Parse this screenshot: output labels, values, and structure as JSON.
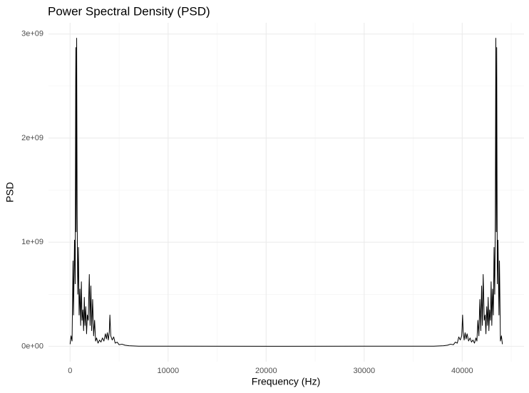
{
  "chart_data": {
    "type": "line",
    "title": "Power Spectral Density (PSD)",
    "x_label": "Frequency (Hz)",
    "y_label": "PSD",
    "color": "#000000",
    "grid": true,
    "xlim": [
      -2205,
      46305
    ],
    "ylim": [
      -148000000,
      3108000000
    ],
    "xticks": [
      0,
      10000,
      20000,
      30000,
      40000
    ],
    "xminor": [
      5000,
      15000,
      25000,
      35000,
      45000
    ],
    "yticks": [
      {
        "value": 0,
        "label": "0e+00"
      },
      {
        "value": 1000000000,
        "label": "1e+09"
      },
      {
        "value": 2000000000,
        "label": "2e+09"
      },
      {
        "value": 3000000000,
        "label": "3e+09"
      }
    ],
    "yminor": [
      500000000,
      1500000000,
      2500000000
    ],
    "x": [
      0,
      100,
      200,
      300,
      350,
      450,
      520,
      580,
      620,
      670,
      720,
      780,
      850,
      920,
      1000,
      1080,
      1150,
      1220,
      1300,
      1380,
      1450,
      1520,
      1600,
      1680,
      1760,
      1850,
      1960,
      2040,
      2120,
      2200,
      2300,
      2400,
      2500,
      2600,
      2700,
      2850,
      3000,
      3150,
      3300,
      3450,
      3600,
      3700,
      3800,
      3900,
      4000,
      4060,
      4150,
      4300,
      4450,
      4600,
      4800,
      5000,
      5300,
      5600,
      6000,
      7000,
      22050,
      37100,
      38100,
      38500,
      38800,
      39100,
      39300,
      39500,
      39650,
      39800,
      39950,
      40040,
      40100,
      40200,
      40300,
      40400,
      40500,
      40650,
      40800,
      40950,
      41100,
      41250,
      41400,
      41500,
      41600,
      41700,
      41800,
      41900,
      41980,
      42060,
      42140,
      42250,
      42340,
      42420,
      42500,
      42580,
      42650,
      42720,
      42800,
      42880,
      42950,
      43020,
      43100,
      43180,
      43250,
      43320,
      43380,
      43430,
      43480,
      43520,
      43580,
      43650,
      43750,
      43800,
      43900,
      44000,
      44100
    ],
    "values": [
      20000000.0,
      100000000.0,
      50000000.0,
      820000000.0,
      300000000.0,
      1020000000.0,
      600000000.0,
      2870000000.0,
      1100000000.0,
      2960000000.0,
      1250000000.0,
      500000000.0,
      950000000.0,
      300000000.0,
      550000000.0,
      200000000.0,
      620000000.0,
      250000000.0,
      350000000.0,
      150000000.0,
      470000000.0,
      200000000.0,
      380000000.0,
      120000000.0,
      300000000.0,
      250000000.0,
      690000000.0,
      200000000.0,
      580000000.0,
      150000000.0,
      450000000.0,
      100000000.0,
      250000000.0,
      50000000.0,
      80000000.0,
      30000000.0,
      60000000.0,
      40000000.0,
      80000000.0,
      50000000.0,
      120000000.0,
      70000000.0,
      130000000.0,
      60000000.0,
      140000000.0,
      300000000.0,
      100000000.0,
      60000000.0,
      90000000.0,
      30000000.0,
      40000000.0,
      15000000.0,
      20000000.0,
      10000000.0,
      5000000.0,
      1000000.0,
      0,
      1000000.0,
      5000000.0,
      10000000.0,
      20000000.0,
      15000000.0,
      40000000.0,
      30000000.0,
      90000000.0,
      60000000.0,
      100000000.0,
      300000000.0,
      140000000.0,
      60000000.0,
      130000000.0,
      70000000.0,
      120000000.0,
      50000000.0,
      80000000.0,
      40000000.0,
      60000000.0,
      30000000.0,
      80000000.0,
      50000000.0,
      250000000.0,
      100000000.0,
      450000000.0,
      150000000.0,
      580000000.0,
      200000000.0,
      690000000.0,
      250000000.0,
      300000000.0,
      120000000.0,
      380000000.0,
      200000000.0,
      470000000.0,
      150000000.0,
      350000000.0,
      250000000.0,
      620000000.0,
      200000000.0,
      550000000.0,
      300000000.0,
      950000000.0,
      500000000.0,
      1250000000.0,
      2960000000.0,
      1100000000.0,
      2870000000.0,
      600000000.0,
      1020000000.0,
      300000000.0,
      820000000.0,
      50000000.0,
      100000000.0,
      20000000.0
    ]
  }
}
